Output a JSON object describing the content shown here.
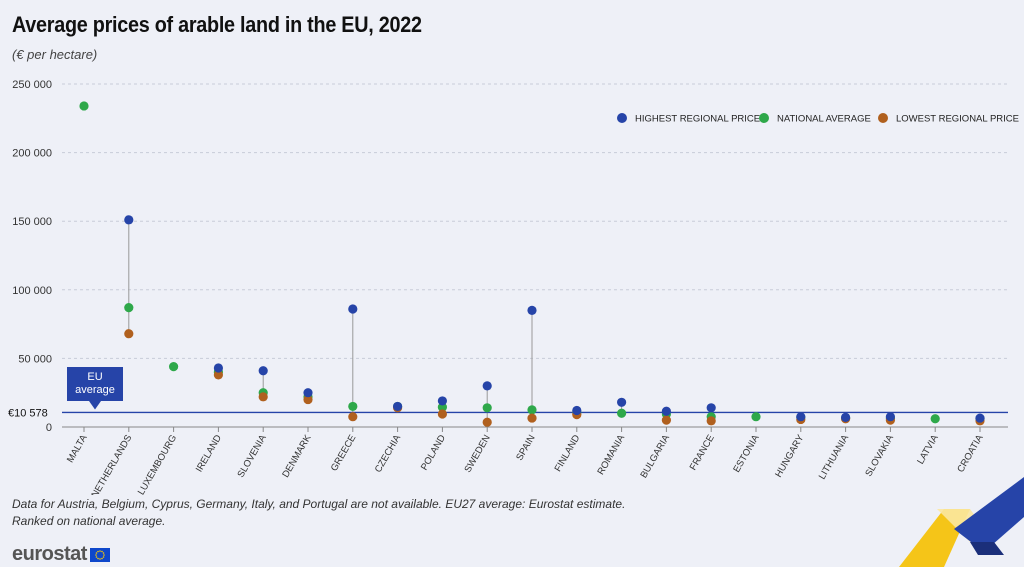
{
  "title": "Average prices of arable land in the EU, 2022",
  "subtitle": "(€ per hectare)",
  "footnotes": [
    "Data for Austria, Belgium, Cyprus, Germany, Italy, and Portugal are not available. EU27 average: Eurostat estimate.",
    "Ranked on national average."
  ],
  "logo_text": "eurostat",
  "colors": {
    "highest": "#2644a8",
    "national": "#2ea84a",
    "lowest": "#b0601e",
    "eu_line": "#2644a8",
    "background": "#eef0f7"
  },
  "chart_data": {
    "type": "scatter",
    "title": "Average prices of arable land in the EU, 2022",
    "ylabel": "(€ per hectare)",
    "ylim": [
      0,
      250000
    ],
    "yticks": [
      0,
      50000,
      100000,
      150000,
      200000,
      250000
    ],
    "ytick_labels": [
      "0",
      "50 000",
      "100 000",
      "150 000",
      "200 000",
      "250 000"
    ],
    "grid": true,
    "legend_position": "top-right",
    "categories": [
      "MALTA",
      "NETHERLANDS",
      "LUXEMBOURG",
      "IRELAND",
      "SLOVENIA",
      "DENMARK",
      "GREECE",
      "CZECHIA",
      "POLAND",
      "SWEDEN",
      "SPAIN",
      "FINLAND",
      "ROMANIA",
      "BULGARIA",
      "FRANCE",
      "ESTONIA",
      "HUNGARY",
      "LITHUANIA",
      "SLOVAKIA",
      "LATVIA",
      "CROATIA"
    ],
    "series": [
      {
        "name": "HIGHEST REGIONAL PRICE",
        "key": "highest",
        "values": [
          null,
          151000,
          null,
          43000,
          41000,
          25000,
          86000,
          15000,
          19000,
          30000,
          85000,
          12000,
          18000,
          11500,
          14000,
          null,
          7500,
          7000,
          7500,
          null,
          6500
        ]
      },
      {
        "name": "NATIONAL AVERAGE",
        "key": "national",
        "values": [
          234000,
          87000,
          44000,
          40000,
          25000,
          22000,
          15000,
          15000,
          14500,
          14000,
          12500,
          10500,
          10000,
          9500,
          7500,
          7500,
          7000,
          6500,
          6500,
          6000,
          6000
        ]
      },
      {
        "name": "LOWEST REGIONAL PRICE",
        "key": "lowest",
        "values": [
          null,
          68000,
          null,
          38000,
          22000,
          20000,
          7500,
          14000,
          9500,
          3500,
          6500,
          9000,
          null,
          5000,
          4500,
          null,
          5500,
          6000,
          5000,
          null,
          4500
        ]
      }
    ],
    "reference_line": {
      "label": "EU average",
      "value": 10578,
      "value_label": "€10 578"
    }
  }
}
